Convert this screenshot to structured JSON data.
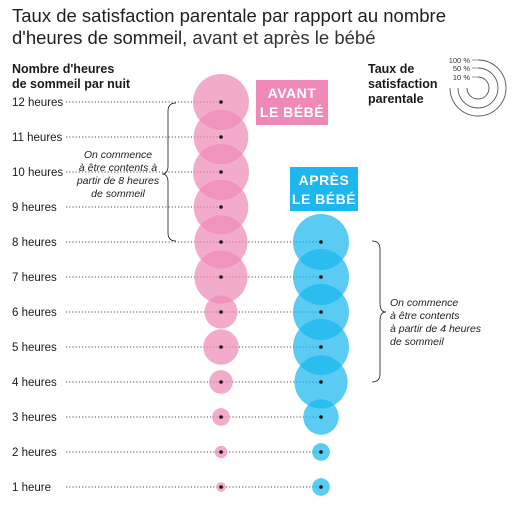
{
  "title": {
    "line1": "Taux de satisfaction parentale par rapport au nombre",
    "line2_bold": "d'heures de sommeil,",
    "line2_light": " avant et après le bébé"
  },
  "y_axis_header": [
    "Nombre d'heures",
    "de sommeil par nuit"
  ],
  "legend": {
    "header": [
      "Taux de",
      "satisfaction",
      "parentale"
    ],
    "levels": [
      "100 %",
      "50 %",
      "10 %"
    ]
  },
  "badges": {
    "before": [
      "AVANT",
      "LE BÉBÉ"
    ],
    "after": [
      "APRÈS",
      "LE BÉBÉ"
    ]
  },
  "notes": {
    "before": [
      "On commence",
      "à être contents à",
      "partir de 8 heures",
      "de sommeil"
    ],
    "after": [
      "On commence",
      "à être contents",
      "à partir de 4 heures",
      "de sommeil"
    ]
  },
  "colors": {
    "before": "#ef8ab8",
    "after": "#1bb7ee",
    "guide": "#1a1a1a"
  },
  "chart_data": {
    "type": "scatter",
    "y_tick_labels": [
      "12 heures",
      "11 heures",
      "10 heures",
      "9 heures",
      "8 heures",
      "7 heures",
      "6 heures",
      "5 heures",
      "4 heures",
      "3 heures",
      "2 heures",
      "1 heure"
    ],
    "y": [
      12,
      11,
      10,
      9,
      8,
      7,
      6,
      5,
      4,
      3,
      2,
      1
    ],
    "size_meaning": "Taux de satisfaction parentale (%)",
    "series": [
      {
        "name": "AVANT LE BÉBÉ",
        "y": [
          12,
          11,
          10,
          9,
          8,
          7,
          6,
          5,
          4,
          3,
          2,
          1
        ],
        "satisfaction": [
          100,
          95,
          100,
          95,
          90,
          90,
          35,
          40,
          18,
          10,
          5,
          3
        ]
      },
      {
        "name": "APRÈS LE BÉBÉ",
        "y": [
          8,
          7,
          6,
          5,
          4,
          3,
          2,
          1
        ],
        "satisfaction": [
          100,
          100,
          100,
          100,
          90,
          40,
          10,
          10
        ]
      }
    ]
  }
}
